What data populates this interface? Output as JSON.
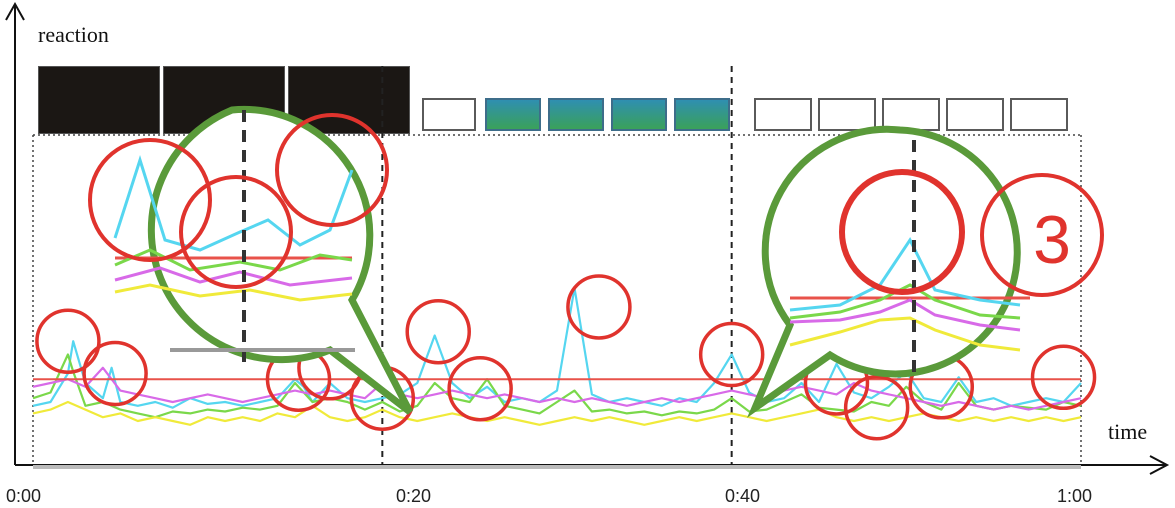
{
  "chart_data": {
    "type": "line",
    "xlabel": "time",
    "ylabel": "reaction",
    "x_ticks": [
      "0:00",
      "0:20",
      "0:40",
      "1:00"
    ],
    "xlim": [
      0,
      60
    ],
    "threshold": 0.32,
    "colors": {
      "cyan": "#55d6f0",
      "green": "#7ad84a",
      "magenta": "#d86ae8",
      "yellow": "#f0ea3a",
      "threshold": "#e8524a",
      "circle": "#e0332d",
      "callout": "#5a9a3a"
    },
    "series": [
      {
        "color_key": "cyan",
        "x": [
          0,
          1,
          2,
          2.3,
          3,
          4,
          4.5,
          5,
          6,
          7,
          8,
          9,
          10,
          11,
          12,
          13,
          14,
          15,
          15.5,
          16,
          17,
          18,
          19,
          20,
          21,
          22,
          23,
          24,
          25,
          26,
          27,
          28,
          29,
          30,
          31,
          32,
          33,
          34,
          35,
          36,
          37,
          38,
          39,
          40,
          41,
          42,
          43,
          44,
          45,
          46,
          47,
          48,
          49,
          50,
          51,
          52,
          53,
          54,
          55,
          56,
          57,
          58,
          59,
          60
        ],
        "y": [
          0.18,
          0.2,
          0.35,
          0.52,
          0.3,
          0.22,
          0.38,
          0.2,
          0.18,
          0.2,
          0.17,
          0.22,
          0.19,
          0.2,
          0.18,
          0.2,
          0.22,
          0.32,
          0.28,
          0.2,
          0.3,
          0.22,
          0.2,
          0.22,
          0.24,
          0.3,
          0.55,
          0.3,
          0.22,
          0.28,
          0.2,
          0.22,
          0.2,
          0.26,
          0.8,
          0.24,
          0.2,
          0.22,
          0.2,
          0.18,
          0.22,
          0.2,
          0.3,
          0.45,
          0.25,
          0.2,
          0.22,
          0.3,
          0.2,
          0.4,
          0.25,
          0.22,
          0.28,
          0.36,
          0.22,
          0.2,
          0.33,
          0.2,
          0.22,
          0.18,
          0.2,
          0.22,
          0.2,
          0.3
        ]
      },
      {
        "color_key": "green",
        "x": [
          0,
          1,
          2,
          2.3,
          3,
          4,
          5,
          6,
          7,
          8,
          9,
          10,
          11,
          12,
          13,
          14,
          15,
          16,
          17,
          18,
          19,
          20,
          21,
          22,
          23,
          24,
          25,
          26,
          27,
          28,
          29,
          30,
          31,
          32,
          33,
          34,
          35,
          36,
          37,
          38,
          39,
          40,
          41,
          42,
          43,
          44,
          45,
          46,
          47,
          48,
          49,
          50,
          51,
          52,
          53,
          54,
          55,
          56,
          57,
          58,
          59,
          60
        ],
        "y": [
          0.22,
          0.25,
          0.45,
          0.36,
          0.18,
          0.2,
          0.16,
          0.14,
          0.12,
          0.15,
          0.14,
          0.16,
          0.15,
          0.17,
          0.16,
          0.18,
          0.3,
          0.2,
          0.22,
          0.2,
          0.16,
          0.2,
          0.15,
          0.18,
          0.3,
          0.22,
          0.2,
          0.32,
          0.18,
          0.16,
          0.14,
          0.2,
          0.26,
          0.15,
          0.16,
          0.14,
          0.15,
          0.13,
          0.15,
          0.14,
          0.16,
          0.22,
          0.15,
          0.16,
          0.2,
          0.24,
          0.17,
          0.16,
          0.15,
          0.2,
          0.18,
          0.28,
          0.2,
          0.16,
          0.3,
          0.18,
          0.16,
          0.18,
          0.17,
          0.16,
          0.2,
          0.18
        ]
      },
      {
        "color_key": "magenta",
        "x": [
          0,
          1,
          2,
          3,
          4,
          5,
          6,
          7,
          8,
          9,
          10,
          11,
          12,
          13,
          14,
          15,
          16,
          17,
          18,
          19,
          20,
          21,
          22,
          23,
          24,
          25,
          26,
          27,
          28,
          29,
          30,
          31,
          32,
          33,
          34,
          35,
          36,
          37,
          38,
          39,
          40,
          41,
          42,
          43,
          44,
          45,
          46,
          47,
          48,
          49,
          50,
          51,
          52,
          53,
          54,
          55,
          56,
          57,
          58,
          59,
          60
        ],
        "y": [
          0.28,
          0.3,
          0.32,
          0.28,
          0.38,
          0.26,
          0.24,
          0.22,
          0.2,
          0.22,
          0.24,
          0.22,
          0.2,
          0.22,
          0.24,
          0.26,
          0.24,
          0.26,
          0.24,
          0.22,
          0.3,
          0.24,
          0.22,
          0.24,
          0.26,
          0.24,
          0.22,
          0.24,
          0.22,
          0.2,
          0.22,
          0.2,
          0.22,
          0.2,
          0.18,
          0.2,
          0.22,
          0.2,
          0.22,
          0.24,
          0.26,
          0.24,
          0.22,
          0.26,
          0.28,
          0.26,
          0.24,
          0.3,
          0.26,
          0.24,
          0.22,
          0.2,
          0.18,
          0.2,
          0.18,
          0.16,
          0.18,
          0.16,
          0.18,
          0.2,
          0.22
        ]
      },
      {
        "color_key": "yellow",
        "x": [
          0,
          1,
          2,
          3,
          4,
          5,
          6,
          7,
          8,
          9,
          10,
          11,
          12,
          13,
          14,
          15,
          16,
          17,
          18,
          19,
          20,
          21,
          22,
          23,
          24,
          25,
          26,
          27,
          28,
          29,
          30,
          31,
          32,
          33,
          34,
          35,
          36,
          37,
          38,
          39,
          40,
          41,
          42,
          43,
          44,
          45,
          46,
          47,
          48,
          49,
          50,
          51,
          52,
          53,
          54,
          55,
          56,
          57,
          58,
          59,
          60
        ],
        "y": [
          0.14,
          0.16,
          0.2,
          0.16,
          0.12,
          0.14,
          0.1,
          0.12,
          0.1,
          0.08,
          0.12,
          0.1,
          0.12,
          0.1,
          0.14,
          0.12,
          0.18,
          0.12,
          0.1,
          0.12,
          0.16,
          0.12,
          0.1,
          0.12,
          0.14,
          0.12,
          0.1,
          0.12,
          0.1,
          0.08,
          0.1,
          0.12,
          0.1,
          0.12,
          0.1,
          0.08,
          0.1,
          0.12,
          0.1,
          0.12,
          0.14,
          0.12,
          0.1,
          0.12,
          0.14,
          0.16,
          0.12,
          0.1,
          0.12,
          0.1,
          0.12,
          0.14,
          0.12,
          0.1,
          0.12,
          0.1,
          0.12,
          0.1,
          0.12,
          0.1,
          0.12
        ]
      }
    ],
    "highlight_points": [
      {
        "x": 2.0,
        "y": 0.52
      },
      {
        "x": 4.7,
        "y": 0.35
      },
      {
        "x": 15.2,
        "y": 0.32
      },
      {
        "x": 17.0,
        "y": 0.38
      },
      {
        "x": 20.0,
        "y": 0.22
      },
      {
        "x": 23.2,
        "y": 0.57
      },
      {
        "x": 25.6,
        "y": 0.27
      },
      {
        "x": 32.4,
        "y": 0.7
      },
      {
        "x": 40.0,
        "y": 0.45
      },
      {
        "x": 46.0,
        "y": 0.3
      },
      {
        "x": 48.3,
        "y": 0.17
      },
      {
        "x": 52.0,
        "y": 0.28
      },
      {
        "x": 59.0,
        "y": 0.33
      }
    ],
    "annotation": "3",
    "grid": "vertical dashed lines at 0:00, 0:20, 0:40, 1:00"
  }
}
